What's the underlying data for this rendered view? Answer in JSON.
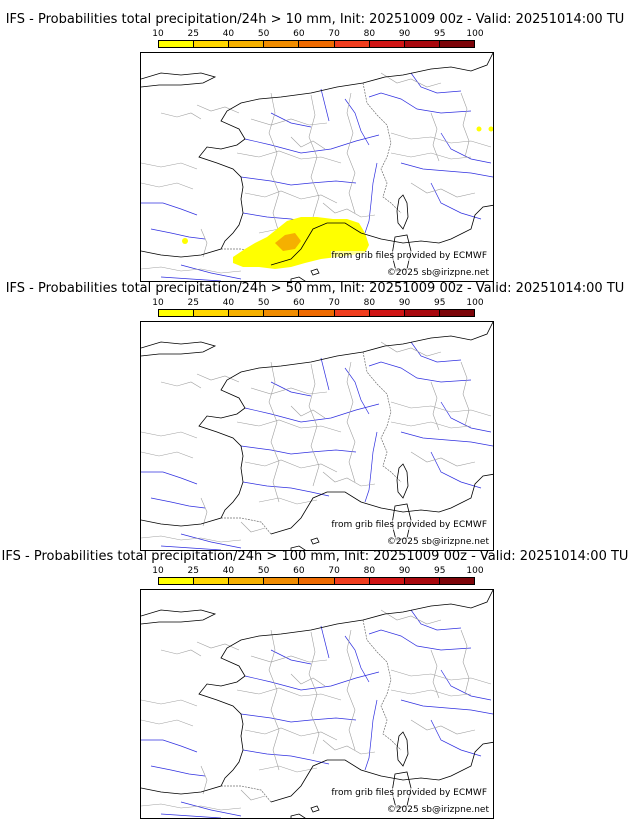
{
  "panels": [
    {
      "title": "IFS - Probabilities total precipitation/24h > 10 mm, Init: 20251009 00z - Valid: 20251014:00 TU",
      "threshold_mm": 10,
      "has_precip": true
    },
    {
      "title": "IFS - Probabilities total precipitation/24h > 50 mm, Init: 20251009 00z - Valid: 20251014:00 TU",
      "threshold_mm": 50,
      "has_precip": false
    },
    {
      "title": "IFS - Probabilities total precipitation/24h > 100 mm, Init: 20251009 00z - Valid: 20251014:00 TU",
      "threshold_mm": 100,
      "has_precip": false
    }
  ],
  "colorbar": {
    "ticks": [
      "10",
      "25",
      "40",
      "50",
      "60",
      "70",
      "80",
      "90",
      "95",
      "100"
    ],
    "colors": [
      "#ffff00",
      "#ffd700",
      "#f5b000",
      "#f08c00",
      "#ee6a00",
      "#f03d1e",
      "#d01414",
      "#a8080e",
      "#7c0409"
    ]
  },
  "credits": {
    "source": "from grib files provided by ECMWF",
    "copyright": "©2025 sb@irizpne.net"
  }
}
